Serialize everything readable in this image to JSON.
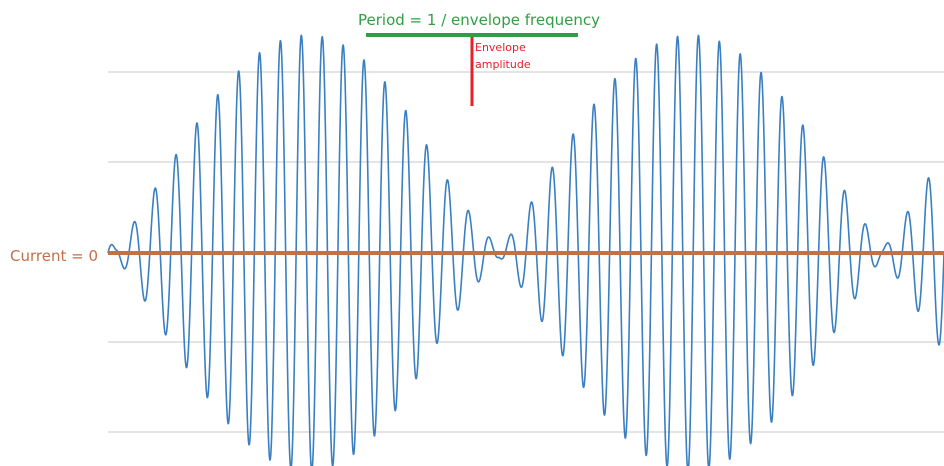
{
  "diagram": {
    "period_label": "Period = 1 / envelope frequency",
    "envelope_label_line1": "Envelope",
    "envelope_label_line2": "amplitude",
    "current_label": "Current = 0"
  },
  "colors": {
    "waveform": "#3a7fc1",
    "zero_line": "#c0714a",
    "period_bracket": "#2ea043",
    "envelope_marker": "#e5202a",
    "gridline": "#c8c8c8",
    "background": "#ffffff"
  },
  "chart_data": {
    "type": "line",
    "title": "",
    "xlabel": "",
    "ylabel": "",
    "grid": true,
    "series": [
      {
        "values_description": "",
        "carrier_cycles": 40,
        "envelope_peaks": 3,
        "envelope_troughs": 2
      }
    ]
  }
}
